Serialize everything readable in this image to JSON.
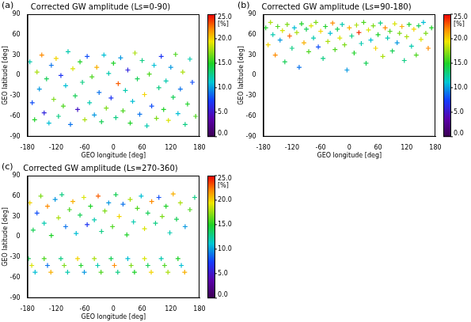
{
  "chart_data": [
    {
      "type": "scatter",
      "panel": "(a)",
      "title": "Corrected GW amplitude (Ls=0-90)",
      "x_label": "GEO longitude [deg]",
      "y_label": "GEO latitude [deg]",
      "marker": "cross",
      "grid": false,
      "xlim": [
        -180,
        180
      ],
      "xticks": [
        -180,
        -120,
        -60,
        0,
        60,
        120,
        180
      ],
      "ylim": [
        -90,
        90
      ],
      "yticks": [
        -90,
        -60,
        -30,
        0,
        30,
        60,
        90
      ],
      "x": [
        -175,
        -170,
        -165,
        -160,
        -155,
        -150,
        -145,
        -140,
        -135,
        -130,
        -125,
        -120,
        -115,
        -110,
        -105,
        -100,
        -95,
        -90,
        -85,
        -80,
        -75,
        -70,
        -65,
        -60,
        -55,
        -50,
        -45,
        -40,
        -35,
        -30,
        -25,
        -20,
        -15,
        -10,
        -5,
        0,
        5,
        10,
        15,
        20,
        25,
        30,
        35,
        40,
        45,
        50,
        55,
        60,
        65,
        70,
        75,
        80,
        85,
        90,
        95,
        100,
        105,
        110,
        115,
        120,
        125,
        130,
        135,
        140,
        145,
        150,
        155,
        160,
        165,
        172
      ],
      "values": [
        20,
        -40,
        -65,
        5,
        -20,
        30,
        -55,
        -5,
        -70,
        15,
        -35,
        25,
        -60,
        0,
        -45,
        -15,
        35,
        -72,
        10,
        -30,
        -50,
        20,
        -10,
        -65,
        28,
        -40,
        -2,
        -58,
        12,
        -25,
        -68,
        30,
        -48,
        3,
        -33,
        18,
        -62,
        -12,
        26,
        -52,
        -22,
        8,
        -70,
        -38,
        33,
        -5,
        -57,
        22,
        -28,
        -74,
        2,
        -45,
        15,
        -63,
        -18,
        28,
        -50,
        -8,
        -66,
        12,
        -32,
        31,
        -56,
        -20,
        5,
        -72,
        -42,
        24,
        -10,
        -60
      ],
      "amplitude": [
        12,
        8,
        15,
        18,
        10,
        22,
        6,
        14,
        11,
        9,
        17,
        20,
        13,
        7,
        16,
        11,
        12,
        9,
        19,
        14,
        5,
        15,
        13,
        18,
        8,
        12,
        16,
        10,
        21,
        9,
        14,
        11,
        17,
        12,
        7,
        15,
        13,
        23,
        10,
        16,
        12,
        6,
        15,
        11,
        18,
        14,
        9,
        13,
        20,
        12,
        16,
        8,
        11,
        17,
        13,
        7,
        15,
        12,
        19,
        10,
        14,
        16,
        11,
        9,
        18,
        13,
        15,
        12,
        8,
        16
      ],
      "colorbar": {
        "range": [
          0,
          25
        ],
        "label": "[%]",
        "ticks": [
          {
            "value": 0,
            "label": "0.0"
          },
          {
            "value": 5,
            "label": "5.0"
          },
          {
            "value": 10,
            "label": "10.0"
          },
          {
            "value": 15,
            "label": "15.0"
          },
          {
            "value": 20,
            "label": "20.0"
          },
          {
            "value": 25,
            "label": "25.0"
          }
        ]
      }
    },
    {
      "type": "scatter",
      "panel": "(b)",
      "title": "Corrected GW amplitude (Ls=90-180)",
      "x_label": "GEO longitude [deg]",
      "y_label": "GEO latitude [deg]",
      "marker": "cross",
      "grid": false,
      "xlim": [
        -180,
        180
      ],
      "xticks": [
        -180,
        -120,
        -60,
        0,
        60,
        120,
        180
      ],
      "ylim": [
        -90,
        90
      ],
      "yticks": [
        -90,
        -60,
        -30,
        0,
        30,
        60,
        90
      ],
      "x": [
        -175,
        -170,
        -165,
        -160,
        -155,
        -150,
        -145,
        -140,
        -135,
        -130,
        -125,
        -120,
        -115,
        -110,
        -105,
        -100,
        -95,
        -90,
        -85,
        -80,
        -75,
        -70,
        -65,
        -60,
        -55,
        -50,
        -45,
        -40,
        -35,
        -30,
        -25,
        -20,
        -15,
        -10,
        -5,
        0,
        5,
        10,
        15,
        20,
        25,
        30,
        35,
        40,
        45,
        50,
        55,
        60,
        65,
        70,
        75,
        80,
        85,
        90,
        95,
        100,
        105,
        110,
        115,
        120,
        125,
        130,
        135,
        140,
        145,
        150,
        155,
        160,
        165,
        172
      ],
      "values": [
        70,
        45,
        78,
        60,
        30,
        72,
        52,
        66,
        20,
        75,
        58,
        40,
        70,
        63,
        12,
        76,
        48,
        68,
        35,
        73,
        55,
        78,
        42,
        65,
        25,
        72,
        50,
        62,
        77,
        38,
        68,
        55,
        75,
        45,
        8,
        70,
        58,
        33,
        74,
        63,
        47,
        78,
        18,
        67,
        52,
        73,
        40,
        60,
        77,
        28,
        70,
        55,
        65,
        36,
        76,
        48,
        62,
        72,
        22,
        57,
        75,
        43,
        68,
        30,
        73,
        53,
        78,
        62,
        40,
        70
      ],
      "amplitude": [
        15,
        20,
        18,
        12,
        22,
        16,
        10,
        19,
        14,
        17,
        23,
        13,
        11,
        18,
        9,
        15,
        21,
        14,
        16,
        19,
        12,
        17,
        8,
        20,
        13,
        15,
        18,
        11,
        22,
        16,
        14,
        19,
        12,
        17,
        10,
        21,
        13,
        15,
        18,
        24,
        12,
        16,
        14,
        19,
        11,
        17,
        20,
        15,
        13,
        18,
        22,
        12,
        16,
        14,
        19,
        10,
        17,
        21,
        13,
        18,
        15,
        12,
        20,
        16,
        14,
        19,
        11,
        17,
        22,
        15
      ],
      "colorbar": {
        "range": [
          0,
          25
        ],
        "label": "[%]",
        "ticks": [
          {
            "value": 0,
            "label": "0.0"
          },
          {
            "value": 5,
            "label": "5.0"
          },
          {
            "value": 10,
            "label": "10.0"
          },
          {
            "value": 15,
            "label": "15.0"
          },
          {
            "value": 20,
            "label": "20.0"
          },
          {
            "value": 25,
            "label": "25.0"
          }
        ]
      }
    },
    {
      "type": "scatter",
      "panel": "(c)",
      "title": "Corrected GW amplitude (Ls=270-360)",
      "x_label": "GEO longitude [deg]",
      "y_label": "GEO latitude [deg]",
      "marker": "cross",
      "grid": false,
      "xlim": [
        -180,
        180
      ],
      "xticks": [
        -180,
        -120,
        -60,
        0,
        60,
        120,
        180
      ],
      "ylim": [
        -90,
        90
      ],
      "yticks": [
        -90,
        -60,
        -30,
        0,
        30,
        60,
        90
      ],
      "x": [
        -175,
        -168,
        -160,
        -152,
        -145,
        -138,
        -130,
        -122,
        -115,
        -108,
        -100,
        -92,
        -85,
        -78,
        -70,
        -62,
        -55,
        -48,
        -40,
        -32,
        -25,
        -18,
        -10,
        -2,
        5,
        12,
        20,
        28,
        35,
        42,
        50,
        58,
        65,
        72,
        80,
        88,
        95,
        102,
        110,
        118,
        125,
        132,
        140,
        150,
        160,
        170,
        -178,
        -171,
        -164,
        -145,
        -138,
        -131,
        -110,
        -103,
        -96,
        -75,
        -68,
        -61,
        -40,
        -33,
        -26,
        -5,
        2,
        9,
        30,
        37,
        44,
        65,
        72,
        79,
        100,
        107,
        114,
        135,
        142,
        149
      ],
      "values": [
        50,
        10,
        35,
        60,
        20,
        45,
        2,
        55,
        28,
        62,
        15,
        40,
        52,
        5,
        32,
        58,
        18,
        45,
        25,
        60,
        8,
        38,
        50,
        15,
        62,
        30,
        48,
        3,
        55,
        22,
        42,
        60,
        12,
        35,
        52,
        20,
        58,
        30,
        45,
        6,
        63,
        26,
        50,
        15,
        40,
        58,
        -32,
        -42,
        -52,
        -32,
        -42,
        -52,
        -32,
        -42,
        -52,
        -32,
        -42,
        -52,
        -32,
        -42,
        -52,
        -32,
        -42,
        -52,
        -32,
        -42,
        -52,
        -32,
        -42,
        -52,
        -32,
        -42,
        -52,
        -32,
        -42,
        -52
      ],
      "amplitude": [
        20,
        14,
        8,
        17,
        12,
        22,
        15,
        10,
        18,
        13,
        9,
        16,
        21,
        11,
        14,
        19,
        7,
        15,
        12,
        23,
        13,
        17,
        10,
        16,
        14,
        20,
        9,
        15,
        18,
        12,
        16,
        11,
        19,
        14,
        22,
        13,
        8,
        17,
        15,
        12,
        21,
        14,
        18,
        10,
        16,
        13,
        14,
        19,
        11,
        16,
        9,
        21,
        13,
        17,
        12,
        20,
        15,
        10,
        18,
        12,
        16,
        14,
        22,
        13,
        11,
        17,
        15,
        19,
        14,
        20,
        12,
        16,
        18,
        15,
        11,
        21
      ],
      "colorbar": {
        "range": [
          0,
          25
        ],
        "label": "[%]",
        "ticks": [
          {
            "value": 0,
            "label": "0.0"
          },
          {
            "value": 5,
            "label": "5.0"
          },
          {
            "value": 10,
            "label": "10.0"
          },
          {
            "value": 15,
            "label": "15.0"
          },
          {
            "value": 20,
            "label": "20.0"
          },
          {
            "value": 25,
            "label": "25.0"
          }
        ]
      }
    }
  ]
}
